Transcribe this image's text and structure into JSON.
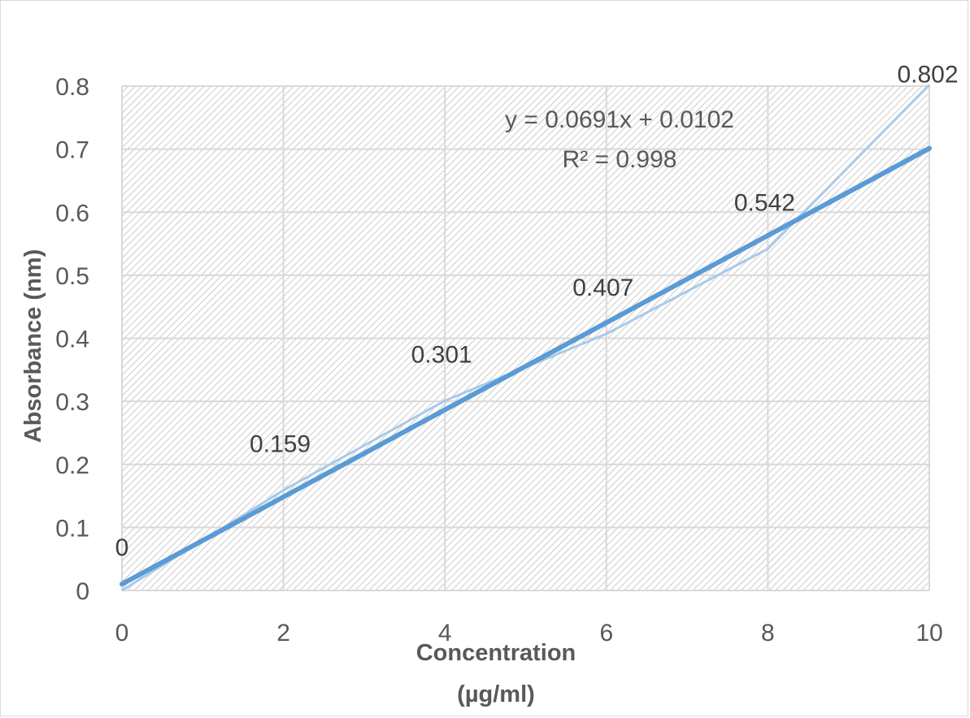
{
  "chart_data": {
    "type": "line",
    "title": "",
    "xlabel": "Concentration (µg/ml)",
    "xlabel_lines": [
      "Concentration",
      "(µg/ml)"
    ],
    "ylabel": "Absorbance (nm)",
    "xlim": [
      0,
      10
    ],
    "ylim": [
      0,
      0.8
    ],
    "x_ticks": [
      "0",
      "2",
      "4",
      "6",
      "8",
      "10"
    ],
    "y_ticks": [
      "0",
      "0.1",
      "0.2",
      "0.3",
      "0.4",
      "0.5",
      "0.6",
      "0.7",
      "0.8"
    ],
    "grid": true,
    "legend": "none",
    "series": [
      {
        "x": [
          0,
          2,
          4,
          6,
          8,
          10
        ],
        "y": [
          0,
          0.159,
          0.301,
          0.407,
          0.542,
          0.802
        ],
        "data_labels": [
          "0",
          "0.159",
          "0.301",
          "0.407",
          "0.542",
          "0.802"
        ],
        "color": "#5b9bd5"
      }
    ],
    "trendline": {
      "type": "linear",
      "slope": 0.0691,
      "intercept": 0.0102,
      "equation": "y = 0.0691x + 0.0102",
      "r_squared": "R² = 0.998",
      "color": "#5b9bd5"
    },
    "plot_background": "hatched"
  }
}
